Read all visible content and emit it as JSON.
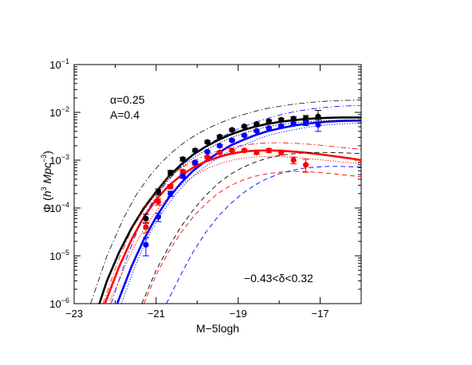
{
  "chart_data": {
    "type": "line",
    "xlabel": "M−5logh",
    "ylabel": "Φ (h³ Mpc⁻³)",
    "ylabel_parts": {
      "symbol": "Φ",
      "open": " (",
      "h": "h",
      "h_exp": "3",
      "mpc": " Mpc",
      "mpc_exp": "−3",
      "close": ")"
    },
    "xlim": [
      -23,
      -16
    ],
    "ylim_log10": [
      -6,
      -1
    ],
    "log_y": true,
    "x_ticks": [
      -23,
      -21,
      -19,
      -17
    ],
    "x_tick_labels": [
      "−23",
      "−21",
      "−19",
      "−17"
    ],
    "y_ticks_log10": [
      -6,
      -5,
      -4,
      -3,
      -2,
      -1
    ],
    "annotations": {
      "alpha": "α=0.25",
      "A": "A=0.4",
      "range": "−0.43<δ<0.32"
    },
    "series": [
      {
        "color": "#000000",
        "style": "solid",
        "x": [
          -22.5,
          -22.2,
          -21.9,
          -21.6,
          -21.3,
          -21.0,
          -20.7,
          -20.4,
          -20.1,
          -19.8,
          -19.5,
          -19.2,
          -18.9,
          -18.6,
          -18.3,
          -18.0,
          -17.7,
          -17.4,
          -17.1,
          -16.8,
          -16.5,
          -16.2,
          -16.0
        ],
        "y": [
          5e-07,
          3e-06,
          1.2e-05,
          3.8e-05,
          0.0001,
          0.00022,
          0.00045,
          0.0008,
          0.0013,
          0.0019,
          0.0026,
          0.0034,
          0.0042,
          0.005,
          0.0057,
          0.0063,
          0.0068,
          0.0072,
          0.0075,
          0.0077,
          0.0078,
          0.0078,
          0.0078
        ]
      },
      {
        "color": "#0000ff",
        "style": "solid",
        "x": [
          -21.95,
          -21.6,
          -21.3,
          -21.0,
          -20.7,
          -20.4,
          -20.1,
          -19.8,
          -19.5,
          -19.2,
          -18.9,
          -18.6,
          -18.3,
          -18.0,
          -17.7,
          -17.4,
          -17.1,
          -16.8,
          -16.5,
          -16.2,
          -16.0
        ],
        "y": [
          1e-06,
          6e-06,
          2.2e-05,
          6.5e-05,
          0.00016,
          0.00033,
          0.0006,
          0.00095,
          0.0014,
          0.002,
          0.0026,
          0.0033,
          0.004,
          0.0046,
          0.0052,
          0.0057,
          0.0061,
          0.0064,
          0.0066,
          0.0067,
          0.0067
        ]
      },
      {
        "color": "#ff0000",
        "style": "solid",
        "x": [
          -22.25,
          -21.9,
          -21.6,
          -21.3,
          -21.0,
          -20.7,
          -20.4,
          -20.1,
          -19.8,
          -19.5,
          -19.2,
          -18.9,
          -18.6,
          -18.3,
          -18.0,
          -17.7,
          -17.4,
          -17.1,
          -16.8,
          -16.5,
          -16.2,
          -16.0
        ],
        "y": [
          1e-06,
          6e-06,
          2.2e-05,
          6.5e-05,
          0.00015,
          0.00029,
          0.00047,
          0.0007,
          0.00093,
          0.00115,
          0.00135,
          0.0015,
          0.00158,
          0.0016,
          0.00158,
          0.00152,
          0.00145,
          0.00136,
          0.00126,
          0.00116,
          0.00107,
          0.001
        ]
      },
      {
        "color": "#000000",
        "style": "dotted",
        "x": [
          -22.4,
          -22.0,
          -21.6,
          -21.3,
          -21.0,
          -20.7,
          -20.4,
          -20.1,
          -19.8,
          -19.5,
          -19.2,
          -18.9,
          -18.6,
          -18.3,
          -18.0,
          -17.7,
          -17.4,
          -17.1,
          -16.8,
          -16.5,
          -16.2,
          -16.0
        ],
        "y": [
          1e-06,
          8e-06,
          3.5e-05,
          9e-05,
          0.0002,
          0.0004,
          0.0007,
          0.0011,
          0.0016,
          0.0022,
          0.0029,
          0.0036,
          0.0043,
          0.005,
          0.0055,
          0.006,
          0.0063,
          0.0066,
          0.0068,
          0.0069,
          0.0069,
          0.0069
        ]
      },
      {
        "color": "#0000ff",
        "style": "dotted",
        "x": [
          -21.85,
          -21.5,
          -21.2,
          -20.9,
          -20.6,
          -20.3,
          -20.0,
          -19.7,
          -19.4,
          -19.1,
          -18.8,
          -18.5,
          -18.2,
          -17.9,
          -17.6,
          -17.3,
          -17.0,
          -16.7,
          -16.4,
          -16.0
        ],
        "y": [
          1e-06,
          6.5e-06,
          2.5e-05,
          7e-05,
          0.00016,
          0.00032,
          0.00055,
          0.00085,
          0.00125,
          0.0017,
          0.0022,
          0.0028,
          0.0034,
          0.0039,
          0.0044,
          0.0049,
          0.0053,
          0.0056,
          0.0058,
          0.006
        ]
      },
      {
        "color": "#ff0000",
        "style": "dotted",
        "x": [
          -22.15,
          -21.8,
          -21.5,
          -21.2,
          -20.9,
          -20.6,
          -20.3,
          -20.0,
          -19.7,
          -19.4,
          -19.1,
          -18.8,
          -18.5,
          -18.2,
          -17.9,
          -17.6,
          -17.3,
          -17.0,
          -16.7,
          -16.4,
          -16.0
        ],
        "y": [
          1e-06,
          5e-06,
          1.8e-05,
          5e-05,
          0.00011,
          0.00021,
          0.00035,
          0.00052,
          0.0007,
          0.00087,
          0.00102,
          0.00112,
          0.00118,
          0.0012,
          0.00118,
          0.00114,
          0.00108,
          0.00102,
          0.00096,
          0.00091,
          0.00086
        ]
      },
      {
        "color": "#000000",
        "style": "dashdot",
        "x": [
          -22.6,
          -22.2,
          -21.8,
          -21.5,
          -21.2,
          -20.9,
          -20.6,
          -20.3,
          -20.0,
          -19.7,
          -19.4,
          -19.1,
          -18.8,
          -18.5,
          -18.2,
          -17.9,
          -17.6,
          -17.3,
          -17.0,
          -16.7,
          -16.4,
          -16.0
        ],
        "y": [
          1e-06,
          1e-05,
          6e-05,
          0.00018,
          0.00042,
          0.00085,
          0.0015,
          0.0024,
          0.0035,
          0.0048,
          0.0062,
          0.0078,
          0.0094,
          0.011,
          0.0125,
          0.0138,
          0.015,
          0.016,
          0.0168,
          0.0174,
          0.0178,
          0.018
        ]
      },
      {
        "color": "#0000ff",
        "style": "dashdot",
        "x": [
          -22.1,
          -21.7,
          -21.4,
          -21.1,
          -20.8,
          -20.5,
          -20.2,
          -19.9,
          -19.6,
          -19.3,
          -19.0,
          -18.7,
          -18.4,
          -18.1,
          -17.8,
          -17.5,
          -17.2,
          -16.9,
          -16.6,
          -16.3,
          -16.0
        ],
        "y": [
          1e-06,
          1e-05,
          4.5e-05,
          0.00013,
          0.0003,
          0.0006,
          0.00105,
          0.0017,
          0.0025,
          0.0034,
          0.0045,
          0.0057,
          0.007,
          0.0083,
          0.0096,
          0.0108,
          0.0118,
          0.0127,
          0.0133,
          0.0137,
          0.014
        ]
      },
      {
        "color": "#ff0000",
        "style": "dashdot",
        "x": [
          -22.3,
          -21.9,
          -21.6,
          -21.3,
          -21.0,
          -20.7,
          -20.4,
          -20.1,
          -19.8,
          -19.5,
          -19.2,
          -18.9,
          -18.6,
          -18.3,
          -18.0,
          -17.7,
          -17.4,
          -17.1,
          -16.8,
          -16.5,
          -16.0
        ],
        "y": [
          1e-06,
          9e-06,
          3.5e-05,
          0.0001,
          0.00023,
          0.00043,
          0.00068,
          0.00095,
          0.00125,
          0.00155,
          0.00182,
          0.00205,
          0.0022,
          0.0023,
          0.00232,
          0.00228,
          0.0022,
          0.0021,
          0.00198,
          0.00185,
          0.0017
        ]
      },
      {
        "color": "#000000",
        "style": "dashed",
        "x": [
          -21.35,
          -21.0,
          -20.7,
          -20.4,
          -20.1,
          -19.8,
          -19.5,
          -19.2,
          -18.9,
          -18.6,
          -18.3,
          -18.0,
          -17.7,
          -17.4,
          -17.1,
          -16.8,
          -16.5,
          -16.0
        ],
        "y": [
          1e-06,
          5e-06,
          1.5e-05,
          4e-05,
          9e-05,
          0.00018,
          0.00032,
          0.0005,
          0.0007,
          0.0009,
          0.0011,
          0.00125,
          0.00135,
          0.00142,
          0.00145,
          0.00145,
          0.00143,
          0.00138
        ]
      },
      {
        "color": "#ff0000",
        "style": "dashed",
        "x": [
          -21.3,
          -21.0,
          -20.7,
          -20.4,
          -20.1,
          -19.8,
          -19.5,
          -19.2,
          -18.9,
          -18.6,
          -18.3,
          -18.0,
          -17.7,
          -17.4,
          -17.1,
          -16.8,
          -16.5,
          -16.0
        ],
        "y": [
          1e-06,
          4e-06,
          1.2e-05,
          3e-05,
          6.5e-05,
          0.00012,
          0.0002,
          0.00029,
          0.00038,
          0.00046,
          0.00052,
          0.00056,
          0.00058,
          0.00058,
          0.00056,
          0.00053,
          0.0005,
          0.00045
        ]
      },
      {
        "color": "#0000ff",
        "style": "dashed",
        "x": [
          -20.75,
          -20.4,
          -20.1,
          -19.8,
          -19.5,
          -19.2,
          -18.9,
          -18.6,
          -18.3,
          -18.0,
          -17.7,
          -17.4,
          -17.1,
          -16.8,
          -16.5,
          -16.0
        ],
        "y": [
          1e-06,
          4e-06,
          1.2e-05,
          3e-05,
          6.5e-05,
          0.00012,
          0.0002,
          0.0003,
          0.00041,
          0.00052,
          0.00061,
          0.00068,
          0.00072,
          0.00074,
          0.00074,
          0.00072
        ]
      },
      {
        "color": "#000000",
        "style": "points",
        "x": [
          -21.25,
          -20.95,
          -20.65,
          -20.35,
          -20.05,
          -19.75,
          -19.45,
          -19.15,
          -18.85,
          -18.55,
          -18.25,
          -17.95,
          -17.65,
          -17.35,
          -17.05
        ],
        "y": [
          6e-05,
          0.00022,
          0.00055,
          0.00105,
          0.0016,
          0.0024,
          0.0031,
          0.0043,
          0.0051,
          0.0057,
          0.0065,
          0.007,
          0.0074,
          0.0076,
          0.0082
        ],
        "err_low": [
          4.8e-05,
          0.00019,
          0.00049,
          0.00096,
          0.00148,
          0.00225,
          0.0029,
          0.00405,
          0.0048,
          0.00535,
          0.00605,
          0.00645,
          0.0067,
          0.0066,
          0.0062
        ],
        "err_high": [
          7.4e-05,
          0.00025,
          0.00061,
          0.00114,
          0.00172,
          0.00255,
          0.0033,
          0.00455,
          0.0054,
          0.00605,
          0.00695,
          0.00755,
          0.0081,
          0.0086,
          0.011
        ]
      },
      {
        "color": "#ff0000",
        "style": "points",
        "x": [
          -21.25,
          -20.95,
          -20.65,
          -20.35,
          -20.05,
          -19.75,
          -19.45,
          -19.15,
          -18.85,
          -18.55,
          -18.25,
          -17.95,
          -17.65,
          -17.35
        ],
        "y": [
          4e-05,
          0.000135,
          0.00028,
          0.00058,
          0.00085,
          0.00115,
          0.00145,
          0.0016,
          0.0016,
          0.00145,
          0.0016,
          0.00145,
          0.001,
          0.0008
        ],
        "err_low": [
          3e-05,
          0.000115,
          0.00025,
          0.00053,
          0.00079,
          0.00108,
          0.00137,
          0.0015,
          0.0015,
          0.00134,
          0.00145,
          0.00128,
          0.00084,
          0.00056
        ],
        "err_high": [
          5e-05,
          0.000155,
          0.00031,
          0.00063,
          0.00091,
          0.00122,
          0.00153,
          0.0017,
          0.0017,
          0.00156,
          0.00175,
          0.00162,
          0.00116,
          0.00104
        ]
      },
      {
        "color": "#0000ff",
        "style": "points",
        "x": [
          -21.25,
          -20.95,
          -20.65,
          -20.35,
          -20.05,
          -19.75,
          -19.45,
          -19.15,
          -18.85,
          -18.55,
          -18.25,
          -17.95,
          -17.65,
          -17.35,
          -17.05
        ],
        "y": [
          1.7e-05,
          6.5e-05,
          0.0002,
          0.00046,
          0.0009,
          0.0015,
          0.002,
          0.0026,
          0.0033,
          0.0041,
          0.0047,
          0.0052,
          0.0058,
          0.006,
          0.0055
        ],
        "err_low": [
          1e-05,
          5.2e-05,
          0.000175,
          0.00042,
          0.00084,
          0.00142,
          0.0019,
          0.00248,
          0.00315,
          0.0039,
          0.00445,
          0.0049,
          0.00535,
          0.0053,
          0.004
        ],
        "err_high": [
          2.4e-05,
          7.8e-05,
          0.000225,
          0.0005,
          0.00096,
          0.00158,
          0.0021,
          0.00272,
          0.00345,
          0.0043,
          0.00495,
          0.0055,
          0.00625,
          0.0067,
          0.007
        ]
      }
    ]
  }
}
